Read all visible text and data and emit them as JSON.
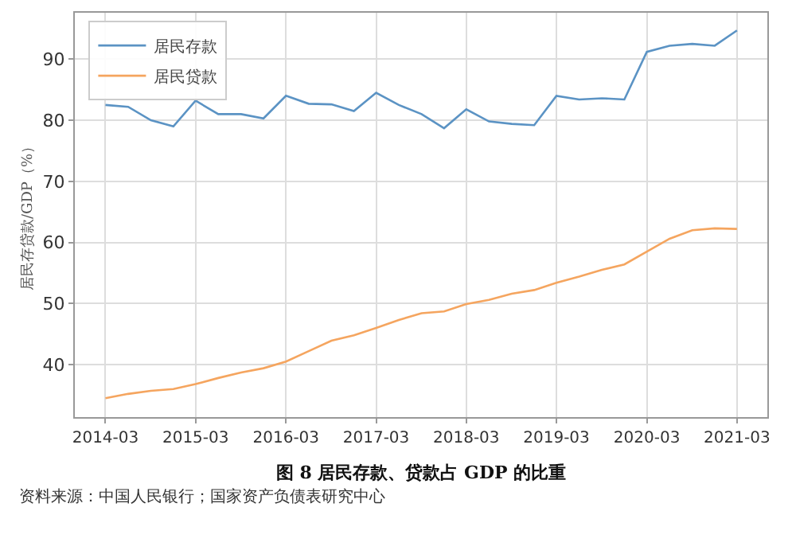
{
  "chart_data": {
    "type": "line",
    "title": "图 8 居民存款、贷款占 GDP 的比重",
    "ylabel": "居民存贷款/GDP（%）",
    "x": [
      "2014-03",
      "2014-06",
      "2014-09",
      "2014-12",
      "2015-03",
      "2015-06",
      "2015-09",
      "2015-12",
      "2016-03",
      "2016-06",
      "2016-09",
      "2016-12",
      "2017-03",
      "2017-06",
      "2017-09",
      "2017-12",
      "2018-03",
      "2018-06",
      "2018-09",
      "2018-12",
      "2019-03",
      "2019-06",
      "2019-09",
      "2019-12",
      "2020-03",
      "2020-06",
      "2020-09",
      "2020-12",
      "2021-03"
    ],
    "series": [
      {
        "name": "居民存款",
        "color": "#5b93c4",
        "values": [
          82.5,
          82.2,
          80,
          79,
          83.2,
          81,
          81,
          80.3,
          84,
          82.7,
          82.6,
          81.5,
          84.5,
          82.5,
          81,
          78.7,
          81.8,
          79.8,
          79.4,
          79.2,
          84,
          83.4,
          83.6,
          83.4,
          91.2,
          92.2,
          92.5,
          92.2,
          94.7
        ]
      },
      {
        "name": "居民贷款",
        "color": "#f5a55f",
        "values": [
          34.5,
          35.2,
          35.7,
          36,
          36.8,
          37.8,
          38.7,
          39.4,
          40.5,
          42.2,
          43.9,
          44.8,
          46,
          47.3,
          48.4,
          48.7,
          49.9,
          50.6,
          51.6,
          52.2,
          53.4,
          54.4,
          55.5,
          56.4,
          58.5,
          60.6,
          62,
          62.3,
          62.2
        ]
      }
    ],
    "xlim": [
      "2013-10-28",
      "2021-07-02"
    ],
    "xticks": [
      {
        "value": "2014-03",
        "label": "2014-03"
      },
      {
        "value": "2015-03",
        "label": "2015-03"
      },
      {
        "value": "2016-03",
        "label": "2016-03"
      },
      {
        "value": "2017-03",
        "label": "2017-03"
      },
      {
        "value": "2018-03",
        "label": "2018-03"
      },
      {
        "value": "2019-03",
        "label": "2019-03"
      },
      {
        "value": "2020-03",
        "label": "2020-03"
      },
      {
        "value": "2021-03",
        "label": "2021-03"
      }
    ],
    "ylim": [
      31.4,
      97.6
    ],
    "yticks": [
      40,
      50,
      60,
      70,
      80,
      90
    ],
    "grid": true,
    "legend": "top left",
    "marker": "none",
    "line_style": "solid",
    "annotations": [
      "资料来源：中国人民银行；国家资产负债表研究中心"
    ]
  }
}
